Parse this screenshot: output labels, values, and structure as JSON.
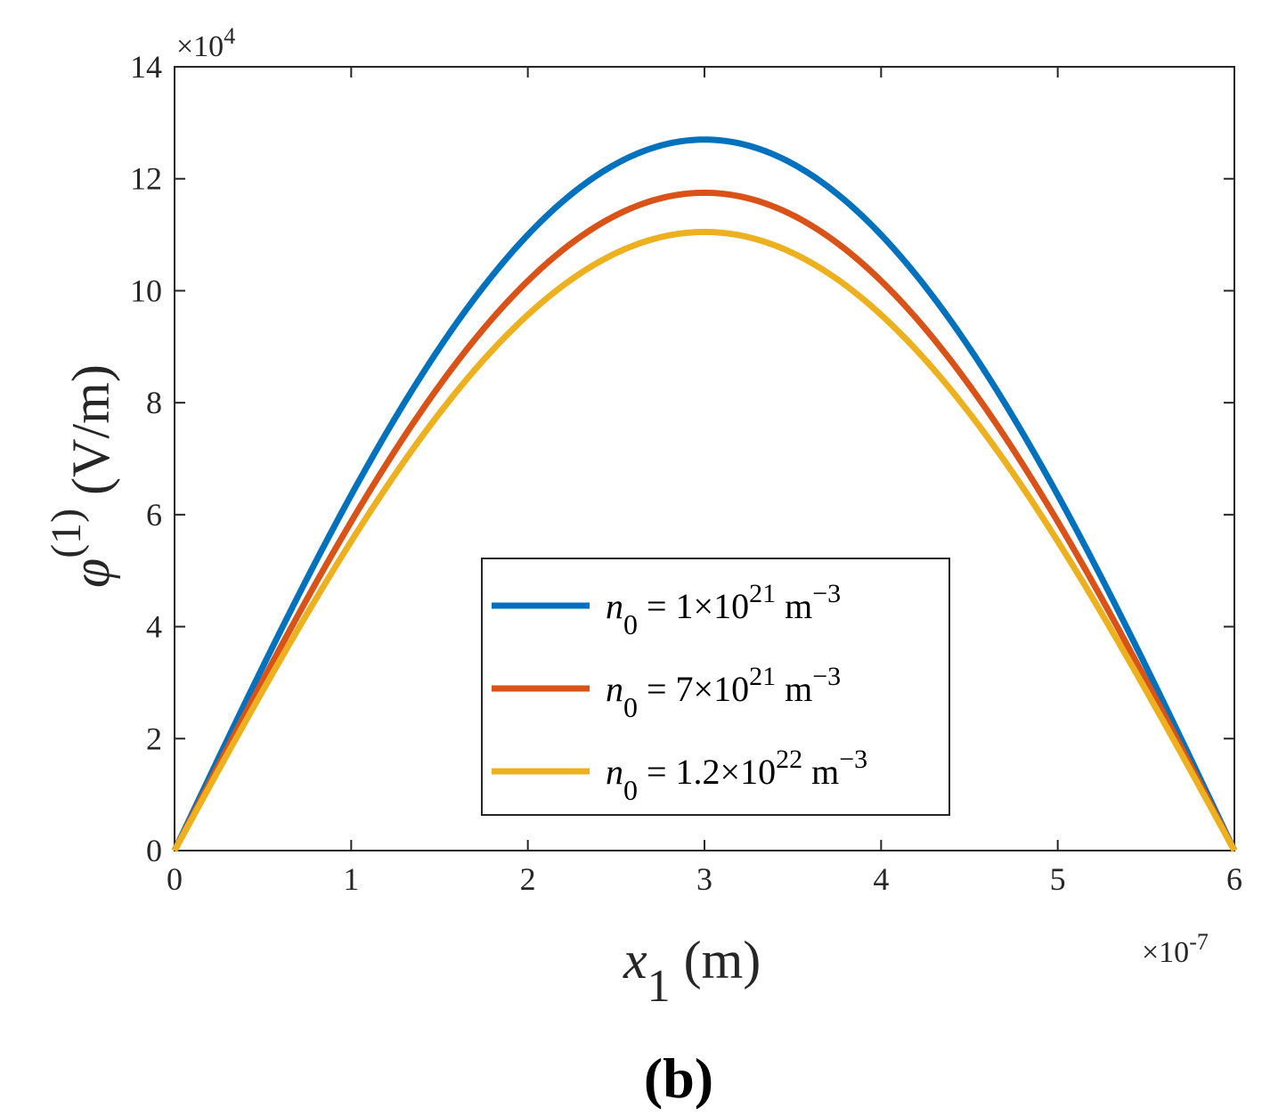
{
  "chart_data": {
    "type": "line",
    "panel_label": "(b)",
    "xlabel": {
      "symbol": "x",
      "subscript": "1",
      "unit": " (m)"
    },
    "ylabel": {
      "symbol": "φ",
      "superscript": "(1)",
      "unit": " (V/m)"
    },
    "x_exponent": {
      "base": "×10",
      "power": "-7"
    },
    "y_exponent": {
      "base": "×10",
      "power": "4"
    },
    "xlim": [
      0,
      6
    ],
    "ylim": [
      0,
      14
    ],
    "xticks": [
      "0",
      "1",
      "2",
      "3",
      "4",
      "5",
      "6"
    ],
    "yticks": [
      "0",
      "2",
      "4",
      "6",
      "8",
      "10",
      "12",
      "14"
    ],
    "legend_position": "lower-center",
    "series": [
      {
        "name": "n0 = 1×10^21 m^-3",
        "label": {
          "mantissa": "1",
          "power": "21"
        },
        "color": "#0072BD",
        "peak_x": 3,
        "peak_y": 12.7,
        "shape": "sine",
        "x": [
          0,
          0.5,
          1,
          1.5,
          2,
          2.5,
          3,
          3.5,
          4,
          4.5,
          5,
          5.5,
          6
        ],
        "y": [
          0,
          3.29,
          6.35,
          8.98,
          11.0,
          12.27,
          12.7,
          12.27,
          11.0,
          8.98,
          6.35,
          3.29,
          0
        ]
      },
      {
        "name": "n0 = 7×10^21 m^-3",
        "label": {
          "mantissa": "7",
          "power": "21"
        },
        "color": "#D95319",
        "peak_x": 3,
        "peak_y": 11.75,
        "shape": "sine",
        "x": [
          0,
          0.5,
          1,
          1.5,
          2,
          2.5,
          3,
          3.5,
          4,
          4.5,
          5,
          5.5,
          6
        ],
        "y": [
          0,
          3.04,
          5.88,
          8.31,
          10.18,
          11.35,
          11.75,
          11.35,
          10.18,
          8.31,
          5.88,
          3.04,
          0
        ]
      },
      {
        "name": "n0 = 1.2×10^22 m^-3",
        "label": {
          "mantissa": "1.2",
          "power": "22"
        },
        "color": "#EDB120",
        "peak_x": 3,
        "peak_y": 11.05,
        "shape": "sine",
        "x": [
          0,
          0.5,
          1,
          1.5,
          2,
          2.5,
          3,
          3.5,
          4,
          4.5,
          5,
          5.5,
          6
        ],
        "y": [
          0,
          2.86,
          5.53,
          7.81,
          9.57,
          10.67,
          11.05,
          10.67,
          9.57,
          7.81,
          5.53,
          2.86,
          0
        ]
      }
    ],
    "legend_text": {
      "var": "n",
      "sub": "0",
      "eq": " = ",
      "times": "×10",
      "unit_pre": " m",
      "unit_pow": "−3"
    }
  }
}
